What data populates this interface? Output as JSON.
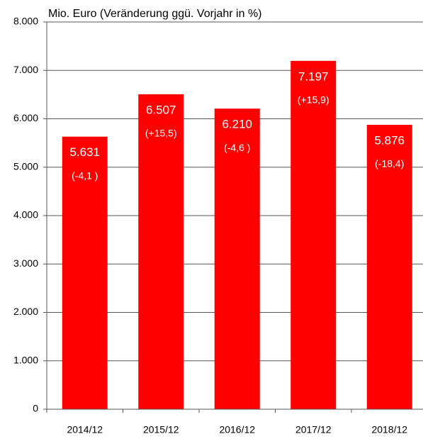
{
  "chart_data": {
    "type": "bar",
    "title": "Mio. Euro (Veränderung ggü. Vorjahr in %)",
    "categories": [
      "2014/12",
      "2015/12",
      "2016/12",
      "2017/12",
      "2018/12"
    ],
    "values": [
      5631,
      6507,
      6210,
      7197,
      5876
    ],
    "value_labels": [
      "5.631",
      "6.507",
      "6.210",
      "7.197",
      "5.876"
    ],
    "annotations": [
      "(-4,1 )",
      "(+15,5)",
      "(-4,6 )",
      "(+15,9)",
      "(-18,4)"
    ],
    "color": "#ff0000",
    "ylim": [
      0,
      8000
    ],
    "yticks": [
      0,
      {
        "value": 1000,
        "label": "1.000"
      },
      {
        "value": 2000,
        "label": "2.000"
      },
      {
        "value": 3000,
        "label": "3.000"
      },
      {
        "value": 4000,
        "label": "4.000"
      },
      {
        "value": 5000,
        "label": "5.000"
      },
      {
        "value": 6000,
        "label": "6.000"
      },
      {
        "value": 7000,
        "label": "7.000"
      },
      {
        "value": 8000,
        "label": "8.000"
      }
    ],
    "grid": true
  }
}
